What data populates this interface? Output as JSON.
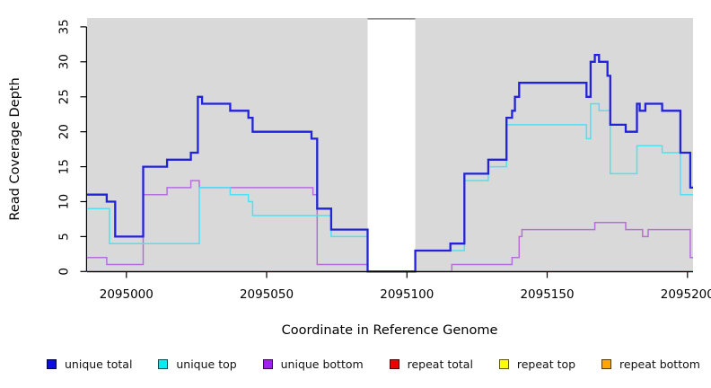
{
  "figure": {
    "xlabel": "Coordinate in Reference Genome",
    "ylabel": "Read Coverage Depth"
  },
  "chart_data": {
    "type": "line",
    "subtype": "step",
    "title": "",
    "xlabel": "Coordinate in Reference Genome",
    "ylabel": "Read Coverage Depth",
    "xlim": [
      2094986,
      2095202
    ],
    "ylim": [
      0,
      35
    ],
    "xticks": [
      2095000,
      2095050,
      2095100,
      2095150,
      2095200
    ],
    "yticks": [
      0,
      5,
      10,
      15,
      20,
      25,
      30,
      35
    ],
    "grid": false,
    "plot_background": "#D9D9D9",
    "page_background": "#FFFFFF",
    "no_data_gap": {
      "x_start": 2095086,
      "x_end": 2095103,
      "fill": "#FFFFFF",
      "top_border_color": "#8C8C8C"
    },
    "x_end": 2095202,
    "draw_order": [
      "repeat top",
      "repeat total",
      "repeat bottom",
      "unique bottom",
      "unique top",
      "unique total"
    ],
    "series": [
      {
        "name": "unique total",
        "color": "#2222D9",
        "line_width": 2.3,
        "steps": [
          [
            2094986,
            11
          ],
          [
            2094993,
            10
          ],
          [
            2094996,
            5
          ],
          [
            2095006,
            15
          ],
          [
            2095014.5,
            16
          ],
          [
            2095023,
            17
          ],
          [
            2095025.5,
            25
          ],
          [
            2095027,
            24
          ],
          [
            2095037,
            23
          ],
          [
            2095043.5,
            22
          ],
          [
            2095045,
            20
          ],
          [
            2095066,
            19
          ],
          [
            2095068,
            9
          ],
          [
            2095073,
            6
          ],
          [
            2095086,
            0
          ],
          [
            2095103,
            3
          ],
          [
            2095115.5,
            4
          ],
          [
            2095120.5,
            14
          ],
          [
            2095129,
            16
          ],
          [
            2095135.5,
            22
          ],
          [
            2095137.5,
            23
          ],
          [
            2095138.5,
            25
          ],
          [
            2095140,
            27
          ],
          [
            2095164,
            25
          ],
          [
            2095165.5,
            30
          ],
          [
            2095167,
            31
          ],
          [
            2095168.5,
            30
          ],
          [
            2095171.5,
            28
          ],
          [
            2095172.5,
            21
          ],
          [
            2095178,
            20
          ],
          [
            2095182,
            24
          ],
          [
            2095183,
            23
          ],
          [
            2095185,
            24
          ],
          [
            2095191,
            23
          ],
          [
            2095197.5,
            17
          ],
          [
            2095201,
            12
          ]
        ]
      },
      {
        "name": "unique top",
        "color": "#4FE1EF",
        "line_width": 1.5,
        "steps": [
          [
            2094986,
            9
          ],
          [
            2094994,
            4
          ],
          [
            2095026,
            12
          ],
          [
            2095037,
            11
          ],
          [
            2095043.5,
            10
          ],
          [
            2095045,
            8
          ],
          [
            2095073,
            5
          ],
          [
            2095086,
            0
          ],
          [
            2095103,
            3
          ],
          [
            2095120.5,
            13
          ],
          [
            2095129,
            15
          ],
          [
            2095135.5,
            21
          ],
          [
            2095164,
            19
          ],
          [
            2095165.5,
            24
          ],
          [
            2095168.5,
            23
          ],
          [
            2095172.5,
            14
          ],
          [
            2095182,
            18
          ],
          [
            2095191,
            17
          ],
          [
            2095197.5,
            11
          ]
        ]
      },
      {
        "name": "unique bottom",
        "color": "#B56FDC",
        "line_width": 1.5,
        "steps": [
          [
            2094986,
            2
          ],
          [
            2094993,
            1
          ],
          [
            2095006,
            11
          ],
          [
            2095014.5,
            12
          ],
          [
            2095023,
            13
          ],
          [
            2095026,
            12
          ],
          [
            2095066.5,
            11
          ],
          [
            2095068,
            1
          ],
          [
            2095086,
            0
          ],
          [
            2095116,
            1
          ],
          [
            2095137.5,
            2
          ],
          [
            2095140,
            5
          ],
          [
            2095141,
            6
          ],
          [
            2095167,
            7
          ],
          [
            2095178,
            6
          ],
          [
            2095184,
            5
          ],
          [
            2095186,
            6
          ],
          [
            2095201,
            2
          ]
        ]
      },
      {
        "name": "repeat total",
        "color": "#E60000",
        "line_width": 1.5,
        "steps": [
          [
            2094986,
            0
          ]
        ]
      },
      {
        "name": "repeat top",
        "color": "#FFFF00",
        "line_width": 1.5,
        "steps": [
          [
            2094986,
            0
          ]
        ]
      },
      {
        "name": "repeat bottom",
        "color": "#FFA500",
        "line_width": 1.8,
        "steps": [
          [
            2094986,
            0
          ]
        ]
      }
    ],
    "legend": {
      "position": "bottom",
      "items": [
        {
          "label": "unique total",
          "swatch_color": "#0D0DDD"
        },
        {
          "label": "unique top",
          "swatch_color": "#00EEEE"
        },
        {
          "label": "unique bottom",
          "swatch_color": "#A020F0"
        },
        {
          "label": "repeat total",
          "swatch_color": "#EE0000"
        },
        {
          "label": "repeat top",
          "swatch_color": "#FFFF00"
        },
        {
          "label": "repeat bottom",
          "swatch_color": "#FFA500"
        }
      ]
    }
  }
}
